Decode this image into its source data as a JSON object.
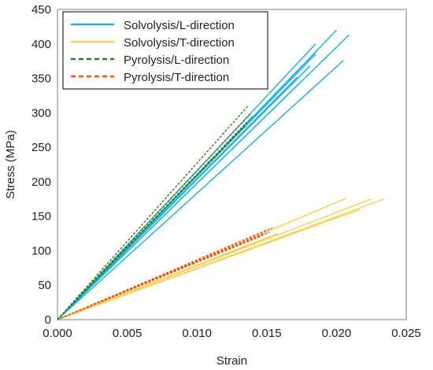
{
  "chart_data": {
    "type": "line",
    "xlabel": "Strain",
    "ylabel": "Stress (MPa)",
    "xlim": [
      0,
      0.025
    ],
    "ylim": [
      0,
      450
    ],
    "xticks": [
      "0.000",
      "0.005",
      "0.010",
      "0.015",
      "0.020",
      "0.025"
    ],
    "xtick_values": [
      0,
      0.005,
      0.01,
      0.015,
      0.02,
      0.025
    ],
    "yticks": [
      "0",
      "50",
      "100",
      "150",
      "200",
      "250",
      "300",
      "350",
      "400",
      "450"
    ],
    "ytick_values": [
      0,
      50,
      100,
      150,
      200,
      250,
      300,
      350,
      400,
      450
    ],
    "grid": false,
    "legend_position": "top-left",
    "series": [
      {
        "name": "Solvolysis/L-direction",
        "color": "#1ab0e0",
        "dash": "solid",
        "lines": [
          {
            "x": [
              0,
              0.0205
            ],
            "y": [
              0,
              376
            ]
          },
          {
            "x": [
              0,
              0.02
            ],
            "y": [
              0,
              420
            ]
          },
          {
            "x": [
              0,
              0.0209
            ],
            "y": [
              0,
              413
            ]
          },
          {
            "x": [
              0,
              0.0185
            ],
            "y": [
              0,
              400
            ]
          },
          {
            "x": [
              0,
              0.0186
            ],
            "y": [
              0,
              390
            ]
          },
          {
            "x": [
              0,
              0.0185
            ],
            "y": [
              0,
              385
            ]
          },
          {
            "x": [
              0,
              0.0181
            ],
            "y": [
              0,
              368
            ]
          },
          {
            "x": [
              0,
              0.0172
            ],
            "y": [
              0,
              352
            ]
          },
          {
            "x": [
              0,
              0.0175
            ],
            "y": [
              0,
              346
            ]
          }
        ]
      },
      {
        "name": "Solvolysis/T-direction",
        "color": "#f6d155",
        "dash": "solid",
        "lines": [
          {
            "x": [
              0,
              0.0234
            ],
            "y": [
              0,
              175
            ]
          },
          {
            "x": [
              0,
              0.0225
            ],
            "y": [
              0,
              175
            ]
          },
          {
            "x": [
              0,
              0.0207
            ],
            "y": [
              0,
              176
            ]
          },
          {
            "x": [
              0,
              0.0217
            ],
            "y": [
              0,
              160
            ]
          },
          {
            "x": [
              0,
              0.0158
            ],
            "y": [
              0,
              125
            ]
          },
          {
            "x": [
              0,
              0.0153
            ],
            "y": [
              0,
              120
            ]
          }
        ]
      },
      {
        "name": "Pyrolysis/L-direction",
        "color": "#2e7d1e",
        "dash": "dashed",
        "lines": [
          {
            "x": [
              0,
              0.0137
            ],
            "y": [
              0,
              311
            ]
          },
          {
            "x": [
              0,
              0.0139
            ],
            "y": [
              0,
              300
            ]
          },
          {
            "x": [
              0,
              0.0141
            ],
            "y": [
              0,
              297
            ]
          },
          {
            "x": [
              0,
              0.0136
            ],
            "y": [
              0,
              287
            ]
          },
          {
            "x": [
              0,
              0.0134
            ],
            "y": [
              0,
              280
            ]
          }
        ]
      },
      {
        "name": "Pyrolysis/T-direction",
        "color": "#e2531e",
        "dash": "dashed",
        "lines": [
          {
            "x": [
              0,
              0.015
            ],
            "y": [
              0,
              130
            ]
          },
          {
            "x": [
              0,
              0.0154
            ],
            "y": [
              0,
              133
            ]
          },
          {
            "x": [
              0,
              0.0148
            ],
            "y": [
              0,
              125
            ]
          },
          {
            "x": [
              0,
              0.0147
            ],
            "y": [
              0,
              122
            ]
          },
          {
            "x": [
              0,
              0.0152
            ],
            "y": [
              0,
              127
            ]
          }
        ]
      }
    ]
  }
}
